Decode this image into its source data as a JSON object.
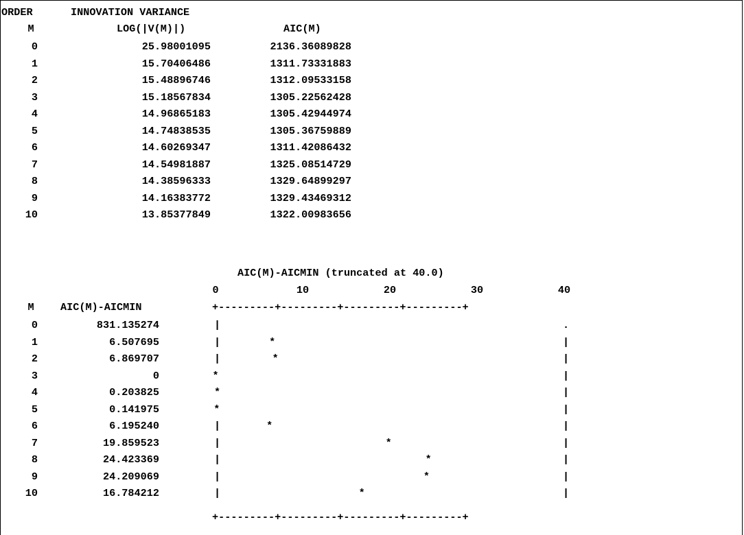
{
  "top_table": {
    "heading_order": "ORDER",
    "heading_variance": "INNOVATION VARIANCE",
    "col_m": "M",
    "col_log": "LOG(|V(M)|)",
    "col_aic": "AIC(M)",
    "rows": [
      {
        "m": "0",
        "log": "25.98001095",
        "aic": "2136.36089828"
      },
      {
        "m": "1",
        "log": "15.70406486",
        "aic": "1311.73331883"
      },
      {
        "m": "2",
        "log": "15.48896746",
        "aic": "1312.09533158"
      },
      {
        "m": "3",
        "log": "15.18567834",
        "aic": "1305.22562428"
      },
      {
        "m": "4",
        "log": "14.96865183",
        "aic": "1305.42944974"
      },
      {
        "m": "5",
        "log": "14.74838535",
        "aic": "1305.36759889"
      },
      {
        "m": "6",
        "log": "14.60269347",
        "aic": "1311.42086432"
      },
      {
        "m": "7",
        "log": "14.54981887",
        "aic": "1325.08514729"
      },
      {
        "m": "8",
        "log": "14.38596333",
        "aic": "1329.64899297"
      },
      {
        "m": "9",
        "log": "14.16383772",
        "aic": "1329.43469312"
      },
      {
        "m": "10",
        "log": "13.85377849",
        "aic": "1322.00983656"
      }
    ]
  },
  "bottom_table": {
    "col_m": "M",
    "col_diff": "AIC(M)-AICMIN",
    "rows": [
      {
        "m": "0",
        "diff": "831.135274"
      },
      {
        "m": "1",
        "diff": "6.507695"
      },
      {
        "m": "2",
        "diff": "6.869707"
      },
      {
        "m": "3",
        "diff": "0"
      },
      {
        "m": "4",
        "diff": "0.203825"
      },
      {
        "m": "5",
        "diff": "0.141975"
      },
      {
        "m": "6",
        "diff": "6.195240"
      },
      {
        "m": "7",
        "diff": "19.859523"
      },
      {
        "m": "8",
        "diff": "24.423369"
      },
      {
        "m": "9",
        "diff": "24.209069"
      },
      {
        "m": "10",
        "diff": "16.784212"
      }
    ]
  },
  "chart_data": {
    "type": "scatter",
    "title": "AIC(M)-AICMIN (truncated at 40.0)",
    "x_ticks": [
      "0",
      "10",
      "20",
      "30",
      "40"
    ],
    "xlim": [
      0,
      40
    ],
    "truncate_at": 40.0,
    "border_top": "+---------+---------+---------+---------+",
    "border_bottom": "+---------+---------+---------+---------+",
    "marker": "*",
    "overflow_marker": ".",
    "pipe": "|",
    "categories": [
      "0",
      "1",
      "2",
      "3",
      "4",
      "5",
      "6",
      "7",
      "8",
      "9",
      "10"
    ],
    "values": [
      831.135274,
      6.507695,
      6.869707,
      0,
      0.203825,
      0.141975,
      6.19524,
      19.859523,
      24.423369,
      24.209069,
      16.784212
    ]
  }
}
